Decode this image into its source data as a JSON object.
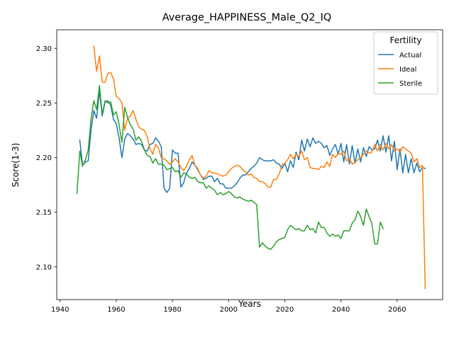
{
  "chart_data": {
    "type": "line",
    "title": "Average_HAPPINESS_Male_Q2_IQ",
    "xlabel": "Years",
    "ylabel": "Score(1-3)",
    "xlim": [
      1938.8,
      2076.2
    ],
    "ylim": [
      2.07,
      2.317
    ],
    "xticks": [
      1940,
      1960,
      1980,
      2000,
      2020,
      2040,
      2060
    ],
    "yticks": [
      2.1,
      2.15,
      2.2,
      2.25,
      2.3
    ],
    "xtick_labels": [
      "1940",
      "1960",
      "1980",
      "2000",
      "2020",
      "2040",
      "2060"
    ],
    "ytick_labels": [
      "2.10",
      "2.15",
      "2.20",
      "2.25",
      "2.30"
    ],
    "grid": false,
    "legend": {
      "title": "Fertility",
      "placement": "top-right"
    },
    "series": [
      {
        "name": "Actual",
        "color": "#1f77b4",
        "x": [
          1947,
          1948,
          1949,
          1950,
          1951,
          1952,
          1953,
          1954,
          1955,
          1956,
          1957,
          1958,
          1959,
          1960,
          1961,
          1962,
          1963,
          1964,
          1965,
          1966,
          1967,
          1968,
          1969,
          1970,
          1971,
          1972,
          1973,
          1974,
          1975,
          1976,
          1977,
          1978,
          1979,
          1980,
          1981,
          1982,
          1983,
          1984,
          1985,
          1986,
          1987,
          1988,
          1989,
          1990,
          1991,
          1992,
          1993,
          1994,
          1995,
          1996,
          1997,
          1998,
          1999,
          2000,
          2001,
          2002,
          2003,
          2004,
          2005,
          2006,
          2007,
          2008,
          2009,
          2010,
          2011,
          2012,
          2013,
          2014,
          2015,
          2016,
          2017,
          2018,
          2019,
          2020,
          2021,
          2022,
          2023,
          2024,
          2025,
          2026,
          2027,
          2028,
          2029,
          2030,
          2031,
          2032,
          2033,
          2034,
          2035,
          2036,
          2037,
          2038,
          2039,
          2040,
          2041,
          2042,
          2043,
          2044,
          2045,
          2046,
          2047,
          2048,
          2049,
          2050,
          2051,
          2052,
          2053,
          2054,
          2055,
          2056,
          2057,
          2058,
          2059,
          2060,
          2061,
          2062,
          2063,
          2064,
          2065,
          2066,
          2067,
          2068,
          2069,
          2070
        ],
        "y": [
          2.216,
          2.193,
          2.196,
          2.197,
          2.225,
          2.243,
          2.236,
          2.261,
          2.238,
          2.251,
          2.252,
          2.248,
          2.235,
          2.231,
          2.218,
          2.2,
          2.217,
          2.222,
          2.22,
          2.217,
          2.212,
          2.213,
          2.212,
          2.207,
          2.206,
          2.212,
          2.213,
          2.218,
          2.215,
          2.21,
          2.172,
          2.168,
          2.172,
          2.207,
          2.204,
          2.204,
          2.173,
          2.177,
          2.186,
          2.19,
          2.196,
          2.193,
          2.189,
          2.184,
          2.18,
          2.181,
          2.183,
          2.183,
          2.178,
          2.181,
          2.176,
          2.176,
          2.172,
          2.172,
          2.172,
          2.174,
          2.177,
          2.181,
          2.184,
          2.184,
          2.187,
          2.19,
          2.192,
          2.195,
          2.2,
          2.198,
          2.197,
          2.197,
          2.197,
          2.198,
          2.195,
          2.194,
          2.19,
          2.195,
          2.187,
          2.197,
          2.191,
          2.205,
          2.198,
          2.216,
          2.206,
          2.217,
          2.21,
          2.218,
          2.213,
          2.215,
          2.213,
          2.209,
          2.211,
          2.202,
          2.208,
          2.212,
          2.203,
          2.213,
          2.196,
          2.212,
          2.194,
          2.211,
          2.195,
          2.208,
          2.196,
          2.209,
          2.201,
          2.21,
          2.207,
          2.208,
          2.216,
          2.206,
          2.22,
          2.205,
          2.22,
          2.197,
          2.215,
          2.189,
          2.208,
          2.186,
          2.203,
          2.186,
          2.199,
          2.186,
          2.195,
          2.187,
          2.191,
          2.19
        ]
      },
      {
        "name": "Ideal",
        "color": "#ff7f0e",
        "x": [
          1952,
          1953,
          1954,
          1955,
          1956,
          1957,
          1958,
          1959,
          1960,
          1961,
          1962,
          1963,
          1964,
          1965,
          1966,
          1967,
          1968,
          1969,
          1970,
          1971,
          1972,
          1973,
          1974,
          1975,
          1976,
          1977,
          1978,
          1979,
          1980,
          1981,
          1982,
          1983,
          1984,
          1985,
          1986,
          1987,
          1988,
          1989,
          1990,
          1991,
          1992,
          1993,
          1994,
          1995,
          1996,
          1997,
          1998,
          1999,
          2000,
          2001,
          2002,
          2003,
          2004,
          2005,
          2006,
          2007,
          2008,
          2009,
          2010,
          2011,
          2012,
          2013,
          2014,
          2015,
          2016,
          2017,
          2018,
          2019,
          2020,
          2021,
          2022,
          2023,
          2024,
          2025,
          2026,
          2027,
          2028,
          2029,
          2030,
          2031,
          2032,
          2033,
          2034,
          2035,
          2036,
          2037,
          2038,
          2039,
          2040,
          2041,
          2042,
          2043,
          2044,
          2045,
          2046,
          2047,
          2048,
          2049,
          2050,
          2051,
          2052,
          2053,
          2054,
          2055,
          2056,
          2057,
          2058,
          2059,
          2060,
          2061,
          2062,
          2063,
          2064,
          2065,
          2066,
          2067,
          2068,
          2069,
          2070
        ],
        "y": [
          2.302,
          2.279,
          2.293,
          2.269,
          2.269,
          2.277,
          2.278,
          2.272,
          2.256,
          2.254,
          2.25,
          2.225,
          2.236,
          2.238,
          2.243,
          2.235,
          2.228,
          2.226,
          2.225,
          2.219,
          2.208,
          2.203,
          2.212,
          2.209,
          2.2,
          2.199,
          2.197,
          2.194,
          2.196,
          2.199,
          2.196,
          2.191,
          2.188,
          2.192,
          2.198,
          2.202,
          2.193,
          2.19,
          2.184,
          2.181,
          2.183,
          2.188,
          2.186,
          2.186,
          2.185,
          2.184,
          2.183,
          2.184,
          2.187,
          2.19,
          2.192,
          2.193,
          2.192,
          2.189,
          2.187,
          2.184,
          2.185,
          2.182,
          2.181,
          2.178,
          2.178,
          2.176,
          2.173,
          2.173,
          2.18,
          2.18,
          2.185,
          2.193,
          2.195,
          2.198,
          2.203,
          2.199,
          2.203,
          2.201,
          2.206,
          2.198,
          2.2,
          2.191,
          2.19,
          2.19,
          2.189,
          2.192,
          2.191,
          2.196,
          2.192,
          2.203,
          2.2,
          2.204,
          2.203,
          2.206,
          2.197,
          2.199,
          2.194,
          2.196,
          2.198,
          2.2,
          2.203,
          2.206,
          2.204,
          2.205,
          2.212,
          2.206,
          2.212,
          2.207,
          2.213,
          2.208,
          2.212,
          2.206,
          2.208,
          2.205,
          2.21,
          2.208,
          2.206,
          2.204,
          2.196,
          2.199,
          2.191,
          2.193,
          2.08
        ]
      },
      {
        "name": "Sterile",
        "color": "#2ca02c",
        "x": [
          1946,
          1947,
          1948,
          1949,
          1950,
          1951,
          1952,
          1953,
          1954,
          1955,
          1956,
          1957,
          1958,
          1959,
          1960,
          1961,
          1962,
          1963,
          1964,
          1965,
          1966,
          1967,
          1968,
          1969,
          1970,
          1971,
          1972,
          1973,
          1974,
          1975,
          1976,
          1977,
          1978,
          1979,
          1980,
          1981,
          1982,
          1983,
          1984,
          1985,
          1986,
          1987,
          1988,
          1989,
          1990,
          1991,
          1992,
          1993,
          1994,
          1995,
          1996,
          1997,
          1998,
          1999,
          2000,
          2001,
          2002,
          2003,
          2004,
          2005,
          2006,
          2007,
          2008,
          2009,
          2010,
          2011,
          2012,
          2013,
          2014,
          2015,
          2016,
          2017,
          2018,
          2019,
          2020,
          2021,
          2022,
          2023,
          2024,
          2025,
          2026,
          2027,
          2028,
          2029,
          2030,
          2031,
          2032,
          2033,
          2034,
          2035,
          2036,
          2037,
          2038,
          2039,
          2040,
          2041,
          2042,
          2043,
          2044,
          2045,
          2046,
          2047,
          2048,
          2049,
          2050,
          2051,
          2052,
          2053,
          2054,
          2055
        ],
        "y": [
          2.167,
          2.206,
          2.192,
          2.198,
          2.207,
          2.235,
          2.252,
          2.244,
          2.266,
          2.24,
          2.252,
          2.25,
          2.251,
          2.239,
          2.242,
          2.23,
          2.214,
          2.246,
          2.237,
          2.23,
          2.226,
          2.216,
          2.219,
          2.215,
          2.207,
          2.202,
          2.201,
          2.195,
          2.199,
          2.194,
          2.194,
          2.193,
          2.189,
          2.19,
          2.191,
          2.187,
          2.188,
          2.182,
          2.186,
          2.185,
          2.182,
          2.181,
          2.182,
          2.178,
          2.177,
          2.177,
          2.172,
          2.174,
          2.172,
          2.17,
          2.166,
          2.168,
          2.166,
          2.167,
          2.169,
          2.167,
          2.164,
          2.163,
          2.164,
          2.162,
          2.161,
          2.16,
          2.161,
          2.159,
          2.157,
          2.118,
          2.122,
          2.119,
          2.117,
          2.116,
          2.119,
          2.123,
          2.125,
          2.126,
          2.127,
          2.134,
          2.138,
          2.136,
          2.134,
          2.135,
          2.133,
          2.133,
          2.138,
          2.134,
          2.135,
          2.131,
          2.141,
          2.136,
          2.136,
          2.131,
          2.128,
          2.13,
          2.128,
          2.129,
          2.126,
          2.133,
          2.133,
          2.133,
          2.14,
          2.143,
          2.151,
          2.146,
          2.138,
          2.153,
          2.146,
          2.14,
          2.121,
          2.121,
          2.141,
          2.135
        ]
      }
    ]
  }
}
